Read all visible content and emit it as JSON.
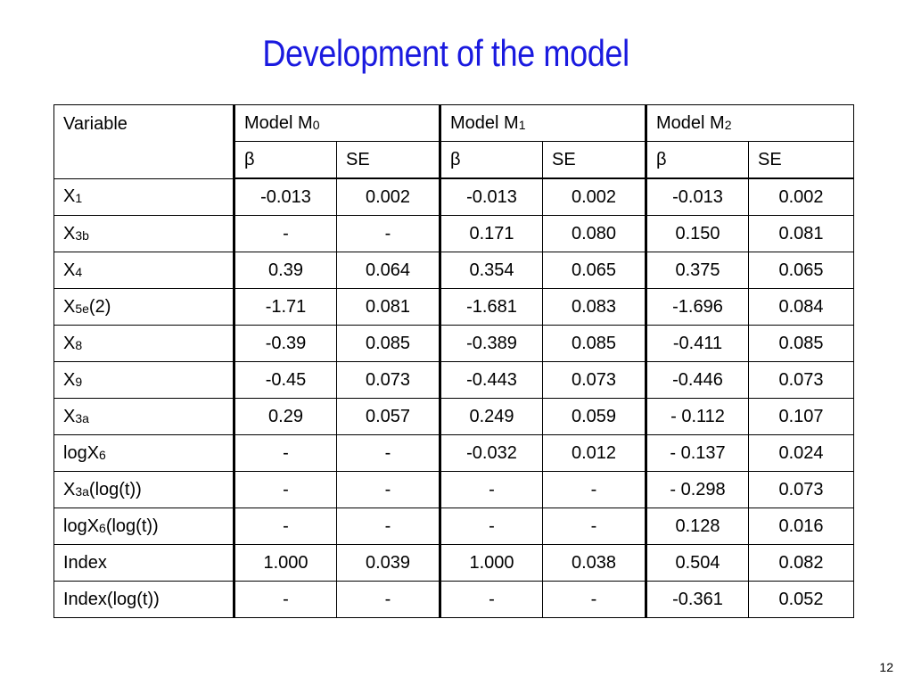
{
  "slide": {
    "title": "Development of the model",
    "page_number": "12"
  },
  "table": {
    "header": {
      "variable": "Variable",
      "models": [
        {
          "label": "Model M",
          "sub": "0"
        },
        {
          "label": "Model M",
          "sub": "1"
        },
        {
          "label": "Model M",
          "sub": "2"
        }
      ],
      "beta": "β",
      "se": "SE"
    },
    "rows": [
      {
        "var": "X",
        "sub": "1",
        "suffix": "",
        "cells": [
          "-0.013",
          "0.002",
          "-0.013",
          "0.002",
          "-0.013",
          "0.002"
        ]
      },
      {
        "var": "X",
        "sub": "3b",
        "suffix": "",
        "cells": [
          "-",
          "-",
          "0.171",
          "0.080",
          "0.150",
          "0.081"
        ]
      },
      {
        "var": "X",
        "sub": "4",
        "suffix": "",
        "cells": [
          "0.39",
          "0.064",
          "0.354",
          "0.065",
          "0.375",
          "0.065"
        ]
      },
      {
        "var": "X",
        "sub": "5e",
        "suffix": "(2)",
        "cells": [
          "-1.71",
          "0.081",
          "-1.681",
          "0.083",
          "-1.696",
          "0.084"
        ]
      },
      {
        "var": "X",
        "sub": "8",
        "suffix": "",
        "cells": [
          "-0.39",
          "0.085",
          "-0.389",
          "0.085",
          "-0.411",
          "0.085"
        ]
      },
      {
        "var": "X",
        "sub": "9",
        "suffix": "",
        "cells": [
          "-0.45",
          "0.073",
          "-0.443",
          "0.073",
          "-0.446",
          "0.073"
        ]
      },
      {
        "var": "X",
        "sub": "3a",
        "suffix": "",
        "cells": [
          "0.29",
          "0.057",
          "0.249",
          "0.059",
          "- 0.112",
          "0.107"
        ]
      },
      {
        "var": "logX",
        "sub": "6",
        "suffix": "",
        "cells": [
          "-",
          "-",
          "-0.032",
          "0.012",
          "- 0.137",
          "0.024"
        ]
      },
      {
        "var": "X",
        "sub": "3a",
        "suffix": "(log(t))",
        "cells": [
          "-",
          "-",
          "-",
          "-",
          "- 0.298",
          "0.073"
        ]
      },
      {
        "var": "logX",
        "sub": "6",
        "suffix": "(log(t))",
        "cells": [
          "-",
          "-",
          "-",
          "-",
          "0.128",
          "0.016"
        ]
      },
      {
        "var": "Index",
        "sub": "",
        "suffix": "",
        "cells": [
          "1.000",
          "0.039",
          "1.000",
          "0.038",
          "0.504",
          "0.082"
        ]
      },
      {
        "var": "Index(log(t))",
        "sub": "",
        "suffix": "",
        "cells": [
          "-",
          "-",
          "-",
          "-",
          "-0.361",
          "0.052"
        ]
      }
    ]
  }
}
